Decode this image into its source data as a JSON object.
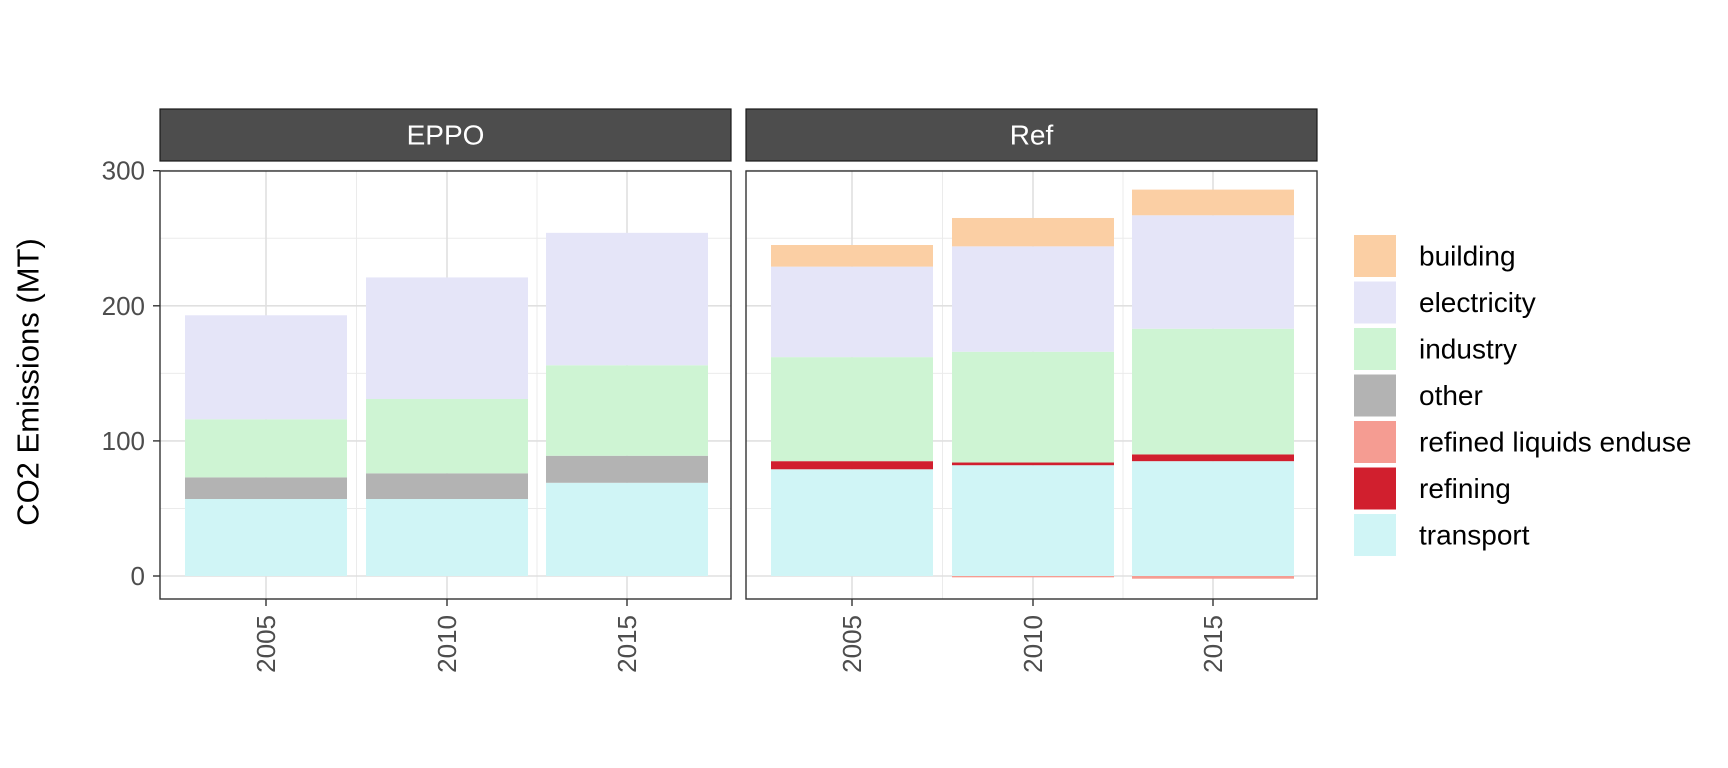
{
  "chart_data": {
    "type": "bar",
    "stacked": true,
    "facets": [
      "EPPO",
      "Ref"
    ],
    "categories": [
      "2005",
      "2010",
      "2015"
    ],
    "ylabel": "CO2 Emissions (MT)",
    "xlabel": "",
    "ylim": [
      -17,
      300
    ],
    "yticks": [
      0,
      100,
      200,
      300
    ],
    "grid": true,
    "legend_position": "right",
    "series": [
      {
        "name": "building",
        "color": "#FBCFA4",
        "values": {
          "EPPO": [
            0,
            0,
            0
          ],
          "Ref": [
            16,
            21,
            19
          ]
        }
      },
      {
        "name": "electricity",
        "color": "#E5E5F8",
        "values": {
          "EPPO": [
            77,
            90,
            98
          ],
          "Ref": [
            67,
            78,
            84
          ]
        }
      },
      {
        "name": "industry",
        "color": "#CEF4D3",
        "values": {
          "EPPO": [
            43,
            55,
            67
          ],
          "Ref": [
            77,
            82,
            93
          ]
        }
      },
      {
        "name": "other",
        "color": "#B3B3B3",
        "values": {
          "EPPO": [
            16,
            19,
            20
          ],
          "Ref": [
            0,
            0,
            0
          ]
        }
      },
      {
        "name": "refined liquids enduse",
        "color": "#F59C92",
        "values": {
          "EPPO": [
            0,
            0,
            0
          ],
          "Ref": [
            0,
            -1,
            -2
          ]
        }
      },
      {
        "name": "refining",
        "color": "#D11F2E",
        "values": {
          "EPPO": [
            0,
            0,
            0
          ],
          "Ref": [
            6,
            2,
            5
          ]
        }
      },
      {
        "name": "transport",
        "color": "#D0F5F6",
        "values": {
          "EPPO": [
            57,
            57,
            69
          ],
          "Ref": [
            79,
            82,
            85
          ]
        }
      }
    ]
  }
}
